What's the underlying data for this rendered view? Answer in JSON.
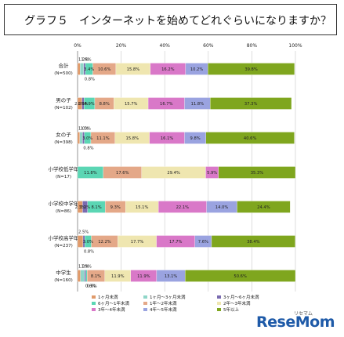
{
  "title": "グラフ５　インターネットを始めてどれぐらいになりますか？",
  "watermark": "ReseMom",
  "watermark_sub": "リセマム",
  "chart_data": {
    "type": "bar",
    "orientation": "horizontal-stacked-100",
    "xlim": [
      0,
      100
    ],
    "xticks": [
      "0%",
      "20%",
      "40%",
      "60%",
      "80%",
      "100%"
    ],
    "grid": true,
    "legend_position": "bottom",
    "categories": [
      [
        "合計",
        "(N=500)"
      ],
      [
        "男の子",
        "(N=102)"
      ],
      [
        "女の子",
        "(N=398)"
      ],
      [
        "小学校低学年",
        "(N=17)"
      ],
      [
        "小学校中学年",
        "(N=86)"
      ],
      [
        "小学校高学年",
        "(N=237)"
      ],
      [
        "中学生",
        "(N=160)"
      ]
    ],
    "series": [
      {
        "name": "1ヶ月未満",
        "color": "#e09a6a",
        "values": [
          1.2,
          2.0,
          1.0,
          0.0,
          2.3,
          2.5,
          1.3
        ]
      },
      {
        "name": "1ヶ月～3ヶ月未満",
        "color": "#8fd6c8",
        "values": [
          1.6,
          0.0,
          1.3,
          0.0,
          0.0,
          0.0,
          1.9
        ]
      },
      {
        "name": "3ヶ月～6ヶ月未満",
        "color": "#7a6bb0",
        "values": [
          0.8,
          1.0,
          0.8,
          0.0,
          2.3,
          0.8,
          0.6
        ]
      },
      {
        "name": "6ヶ月～1年未満",
        "color": "#5bd6b4",
        "values": [
          3.4,
          4.9,
          3.0,
          11.8,
          8.1,
          3.0,
          0.6
        ]
      },
      {
        "name": "1年～2年未満",
        "color": "#e4a888",
        "values": [
          10.6,
          8.8,
          11.1,
          17.6,
          9.3,
          12.2,
          8.1
        ]
      },
      {
        "name": "2年～3年未満",
        "color": "#efe6b0",
        "values": [
          15.8,
          15.7,
          15.8,
          29.4,
          15.1,
          17.7,
          11.9
        ]
      },
      {
        "name": "3年～4年未満",
        "color": "#d978c8",
        "values": [
          16.2,
          16.7,
          16.1,
          5.9,
          22.1,
          17.7,
          11.9
        ]
      },
      {
        "name": "4年～5年未満",
        "color": "#9aa3e0",
        "values": [
          10.2,
          11.8,
          9.8,
          0.0,
          14.0,
          7.6,
          13.1
        ]
      },
      {
        "name": "5年以上",
        "color": "#7fa61e",
        "values": [
          39.8,
          37.3,
          40.6,
          35.3,
          24.4,
          38.4,
          50.6
        ]
      }
    ],
    "labels": [
      [
        [
          "1.2%",
          "top",
          0
        ],
        [
          "1.6%",
          "top",
          1
        ],
        [
          "0.8%",
          "below",
          2
        ],
        [
          "3.4%",
          "in",
          3
        ],
        [
          "10.6%",
          "in",
          4
        ],
        [
          "15.8%",
          "in",
          5
        ],
        [
          "16.2%",
          "in",
          6
        ],
        [
          "10.2%",
          "in",
          7
        ],
        [
          "39.8%",
          "in",
          8
        ]
      ],
      [
        [
          "2.0%",
          "in",
          0
        ],
        [
          "1.0%",
          "in",
          2
        ],
        [
          "4.9%",
          "in",
          3
        ],
        [
          "8.8%",
          "in",
          4
        ],
        [
          "15.7%",
          "in",
          5
        ],
        [
          "16.7%",
          "in",
          6
        ],
        [
          "11.8%",
          "in",
          7
        ],
        [
          "37.3%",
          "in",
          8
        ]
      ],
      [
        [
          "1.0%",
          "top",
          0
        ],
        [
          "1.3%",
          "top",
          1
        ],
        [
          "0.8%",
          "below",
          2
        ],
        [
          "3.0%",
          "in",
          3
        ],
        [
          "11.1%",
          "in",
          4
        ],
        [
          "15.8%",
          "in",
          5
        ],
        [
          "16.1%",
          "in",
          6
        ],
        [
          "9.8%",
          "in",
          7
        ],
        [
          "40.6%",
          "in",
          8
        ]
      ],
      [
        [
          "11.8%",
          "in",
          3
        ],
        [
          "17.6%",
          "in",
          4
        ],
        [
          "29.4%",
          "in",
          5
        ],
        [
          "5.9%",
          "in",
          6
        ],
        [
          "35.3%",
          "in",
          8
        ]
      ],
      [
        [
          "2.3%",
          "in",
          0
        ],
        [
          "2.3%",
          "in",
          2
        ],
        [
          "8.1%",
          "in",
          3
        ],
        [
          "9.3%",
          "in",
          4
        ],
        [
          "15.1%",
          "in",
          5
        ],
        [
          "22.1%",
          "in",
          6
        ],
        [
          "14.0%",
          "in",
          7
        ],
        [
          "24.4%",
          "in",
          8
        ]
      ],
      [
        [
          "2.5%",
          "top",
          0
        ],
        [
          "0.8%",
          "below",
          2
        ],
        [
          "3.0%",
          "in",
          3
        ],
        [
          "12.2%",
          "in",
          4
        ],
        [
          "17.7%",
          "in",
          5
        ],
        [
          "17.7%",
          "in",
          6
        ],
        [
          "7.6%",
          "in",
          7
        ],
        [
          "38.4%",
          "in",
          8
        ]
      ],
      [
        [
          "1.3%",
          "top",
          0
        ],
        [
          "1.9%",
          "top",
          1
        ],
        [
          "0.6%",
          "below",
          2
        ],
        [
          "0.6%",
          "below",
          3
        ],
        [
          "8.1%",
          "in",
          4
        ],
        [
          "11.9%",
          "in",
          5
        ],
        [
          "11.9%",
          "in",
          6
        ],
        [
          "13.1%",
          "in",
          7
        ],
        [
          "50.6%",
          "in",
          8
        ]
      ]
    ]
  }
}
